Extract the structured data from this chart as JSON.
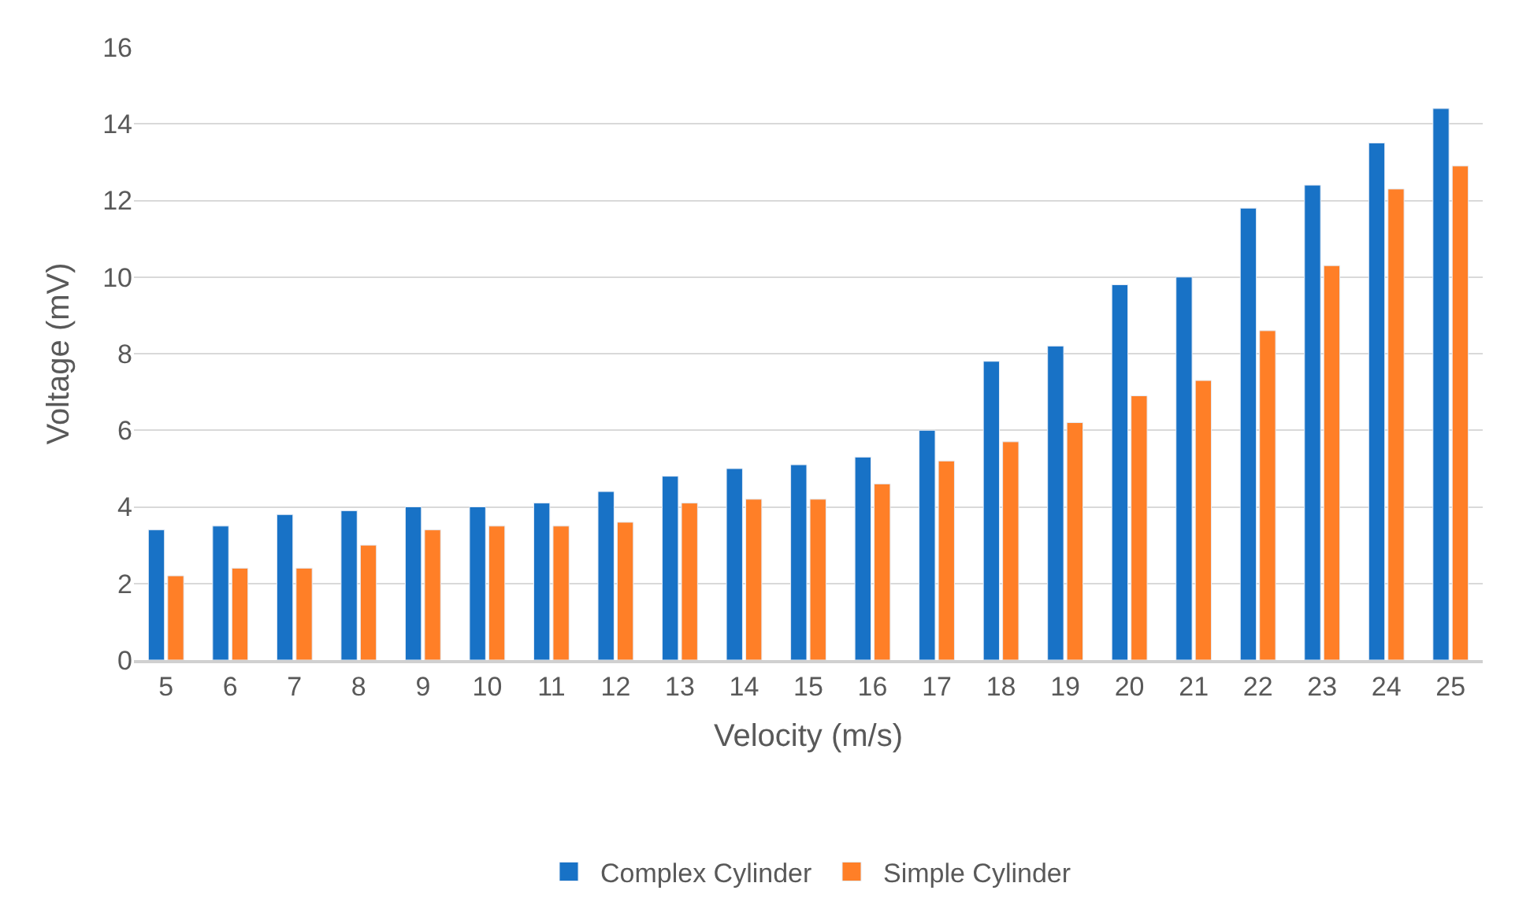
{
  "chart_data": {
    "type": "bar",
    "xlabel": "Velocity (m/s)",
    "ylabel": "Voltage (mV)",
    "categories": [
      "5",
      "6",
      "7",
      "8",
      "9",
      "10",
      "11",
      "12",
      "13",
      "14",
      "15",
      "16",
      "17",
      "18",
      "19",
      "20",
      "21",
      "22",
      "23",
      "24",
      "25"
    ],
    "series": [
      {
        "name": "Complex Cylinder",
        "color": "#1872c6",
        "values": [
          3.4,
          3.5,
          3.8,
          3.9,
          4.0,
          4.0,
          4.1,
          4.4,
          4.8,
          5.0,
          5.1,
          5.3,
          6.0,
          7.8,
          8.2,
          9.8,
          10.0,
          11.8,
          12.4,
          13.5,
          14.4
        ]
      },
      {
        "name": "Simple Cylinder",
        "color": "#ff7f27",
        "values": [
          2.2,
          2.4,
          2.4,
          3.0,
          3.4,
          3.5,
          3.5,
          3.6,
          4.1,
          4.2,
          4.2,
          4.6,
          5.2,
          5.7,
          6.2,
          6.9,
          7.3,
          8.6,
          10.3,
          12.3,
          12.9
        ]
      }
    ],
    "ylim": [
      0,
      16
    ],
    "yticks": [
      0,
      2,
      4,
      6,
      8,
      10,
      12,
      14,
      16
    ],
    "grid": "y",
    "legend": "bottom"
  }
}
